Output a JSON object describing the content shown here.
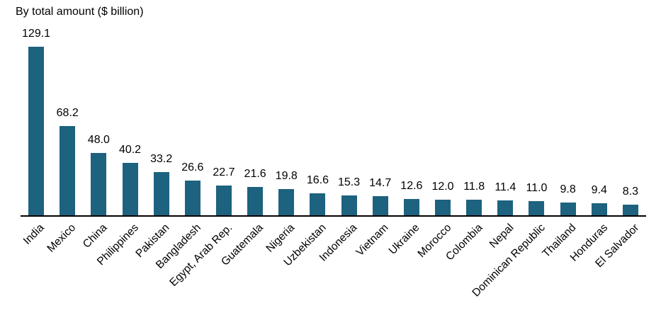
{
  "chart_data": {
    "type": "bar",
    "title": "By total amount ($ billion)",
    "unit": "$ billion",
    "categories": [
      "India",
      "Mexico",
      "China",
      "Philippines",
      "Pakistan",
      "Bangladesh",
      "Egypt, Arab Rep.",
      "Guatemala",
      "Nigeria",
      "Uzbekistan",
      "Indonesia",
      "Vietnam",
      "Ukraine",
      "Morocco",
      "Colombia",
      "Nepal",
      "Dominican Republic",
      "Thailand",
      "Honduras",
      "El Salvador"
    ],
    "values": [
      129.1,
      68.2,
      48.0,
      40.2,
      33.2,
      26.6,
      22.7,
      21.6,
      19.8,
      16.6,
      15.3,
      14.7,
      12.6,
      12.0,
      11.8,
      11.4,
      11.0,
      9.8,
      9.4,
      8.3
    ],
    "xlabel": "",
    "ylabel": "",
    "ylim": [
      0,
      129.1
    ],
    "value_labels_shown": true,
    "value_label_decimals": 1,
    "x_tick_rotation_deg": 45,
    "grid": false,
    "legend": false,
    "bar_color": "#1d627f",
    "axis_line_color": "#000000",
    "text_color": "#000000",
    "background_color": "#ffffff"
  }
}
